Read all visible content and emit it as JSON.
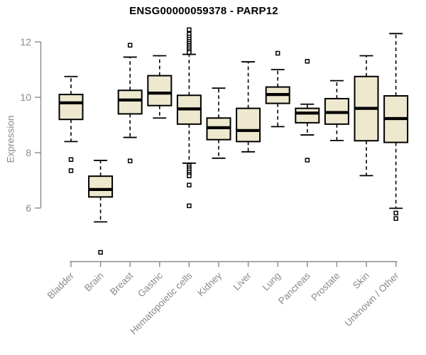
{
  "chart_data": {
    "type": "boxplot",
    "title": "ENSG00000059378 - PARP12",
    "ylabel": "Expression",
    "xlabel": "",
    "yticks": [
      6,
      8,
      10,
      12
    ],
    "ylim": [
      6,
      12
    ],
    "grid": false,
    "legend": null,
    "colors": {
      "box_fill": "#eee8cf",
      "box_stroke": "#000000",
      "median": "#000000",
      "axis": "#8a8a8a",
      "tick_label": "#8a8a8a",
      "title": "#000000"
    },
    "categories": [
      "Bladder",
      "Brain",
      "Breast",
      "Gastric",
      "Hematopoietic cells",
      "Kidney",
      "Liver",
      "Lung",
      "Pancreas",
      "Prostate",
      "Skin",
      "Unknown / Other"
    ],
    "boxes": [
      {
        "label": "Bladder",
        "whislo": 8.4,
        "q1": 9.2,
        "med": 9.8,
        "q3": 10.1,
        "whishi": 10.75,
        "outliers": [
          7.75,
          7.35
        ]
      },
      {
        "label": "Brain",
        "whislo": 5.5,
        "q1": 6.4,
        "med": 6.67,
        "q3": 7.15,
        "whishi": 7.72,
        "outliers": [
          4.4
        ]
      },
      {
        "label": "Breast",
        "whislo": 8.55,
        "q1": 9.4,
        "med": 9.9,
        "q3": 10.25,
        "whishi": 11.45,
        "outliers": [
          11.88,
          7.7
        ]
      },
      {
        "label": "Gastric",
        "whislo": 9.25,
        "q1": 9.7,
        "med": 10.15,
        "q3": 10.78,
        "whishi": 11.5,
        "outliers": []
      },
      {
        "label": "Hematopoietic cells",
        "whislo": 7.62,
        "q1": 9.03,
        "med": 9.58,
        "q3": 10.07,
        "whishi": 11.55,
        "outliers": [
          12.44,
          12.28,
          12.18,
          12.1,
          12.02,
          11.95,
          11.88,
          11.82,
          11.75,
          11.68,
          11.62,
          7.53,
          7.45,
          7.38,
          7.3,
          7.22,
          7.16,
          6.83,
          6.08
        ]
      },
      {
        "label": "Kidney",
        "whislo": 7.8,
        "q1": 8.47,
        "med": 8.9,
        "q3": 9.25,
        "whishi": 10.33,
        "outliers": []
      },
      {
        "label": "Liver",
        "whislo": 8.03,
        "q1": 8.4,
        "med": 8.8,
        "q3": 9.6,
        "whishi": 11.28,
        "outliers": []
      },
      {
        "label": "Lung",
        "whislo": 8.94,
        "q1": 9.78,
        "med": 10.1,
        "q3": 10.37,
        "whishi": 11.0,
        "outliers": [
          11.59
        ]
      },
      {
        "label": "Pancreas",
        "whislo": 8.64,
        "q1": 9.08,
        "med": 9.43,
        "q3": 9.6,
        "whishi": 9.75,
        "outliers": [
          11.3,
          7.73
        ]
      },
      {
        "label": "Prostate",
        "whislo": 8.44,
        "q1": 9.03,
        "med": 9.45,
        "q3": 9.95,
        "whishi": 10.6,
        "outliers": []
      },
      {
        "label": "Skin",
        "whislo": 7.17,
        "q1": 8.43,
        "med": 9.6,
        "q3": 10.75,
        "whishi": 11.5,
        "outliers": []
      },
      {
        "label": "Unknown / Other",
        "whislo": 5.99,
        "q1": 8.37,
        "med": 9.23,
        "q3": 10.05,
        "whishi": 12.3,
        "outliers": [
          5.82,
          5.62
        ]
      }
    ]
  }
}
